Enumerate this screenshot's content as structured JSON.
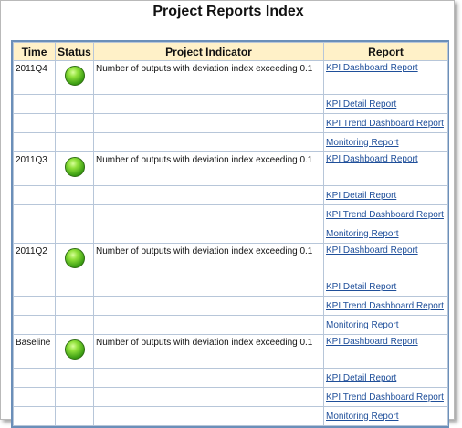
{
  "page": {
    "title": "Project Reports Index"
  },
  "table": {
    "headers": [
      "Time",
      "Status",
      "Project Indicator",
      "Report"
    ],
    "status_color": "#4caf1f",
    "groups": [
      {
        "time": "2011Q4",
        "status": "green",
        "indicator": "Number of outputs with deviation index exceeding 0.1",
        "reports": [
          "KPI Dashboard Report",
          "KPI Detail Report",
          "KPI Trend Dashboard Report",
          "Monitoring Report"
        ]
      },
      {
        "time": "2011Q3",
        "status": "green",
        "indicator": "Number of outputs with deviation index exceeding 0.1",
        "reports": [
          "KPI Dashboard Report",
          "KPI Detail Report",
          "KPI Trend Dashboard Report",
          "Monitoring Report"
        ]
      },
      {
        "time": "2011Q2",
        "status": "green",
        "indicator": "Number of outputs with deviation index exceeding 0.1",
        "reports": [
          "KPI Dashboard Report",
          "KPI Detail Report",
          "KPI Trend Dashboard Report",
          "Monitoring Report"
        ]
      },
      {
        "time": "Baseline",
        "status": "green",
        "indicator": "Number of outputs with deviation index exceeding 0.1",
        "reports": [
          "KPI Dashboard Report",
          "KPI Detail Report",
          "KPI Trend Dashboard Report",
          "Monitoring Report"
        ]
      }
    ]
  }
}
